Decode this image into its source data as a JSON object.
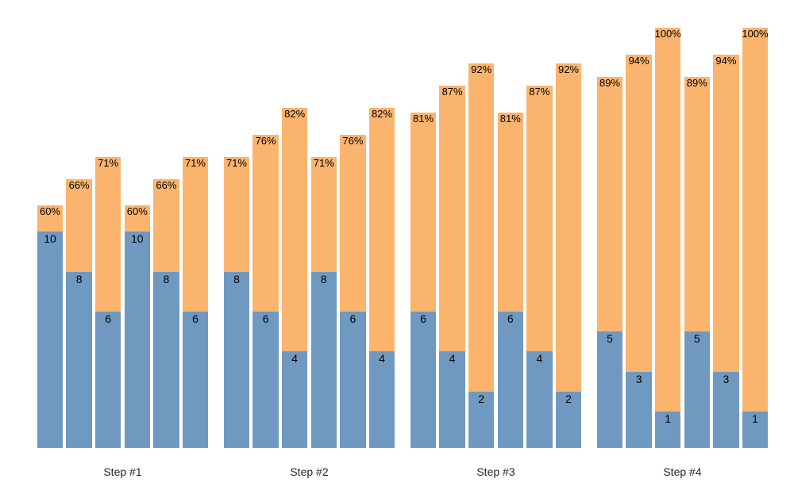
{
  "chart_data": {
    "type": "bar",
    "subtype": "stacked_columns_percent_over_count",
    "title": "",
    "xlabel": "",
    "ylabel": "",
    "grid": false,
    "axes_visible": false,
    "legend_position": "none",
    "background_color": "#ffffff",
    "colors": {
      "bottom_segment_blue": "#7099C1",
      "top_segment_orange": "#FAB46E",
      "bar_label_text": "#000000",
      "group_label_text": "#262626"
    },
    "groups": [
      {
        "label": "Step #1",
        "bars": [
          {
            "percent": 60,
            "percent_label": "60%",
            "count": 10,
            "count_label": "10"
          },
          {
            "percent": 66,
            "percent_label": "66%",
            "count": 8,
            "count_label": "8"
          },
          {
            "percent": 71,
            "percent_label": "71%",
            "count": 6,
            "count_label": "6"
          },
          {
            "percent": 60,
            "percent_label": "60%",
            "count": 10,
            "count_label": "10"
          },
          {
            "percent": 66,
            "percent_label": "66%",
            "count": 8,
            "count_label": "8"
          },
          {
            "percent": 71,
            "percent_label": "71%",
            "count": 6,
            "count_label": "6"
          }
        ]
      },
      {
        "label": "Step #2",
        "bars": [
          {
            "percent": 71,
            "percent_label": "71%",
            "count": 8,
            "count_label": "8"
          },
          {
            "percent": 76,
            "percent_label": "76%",
            "count": 6,
            "count_label": "6"
          },
          {
            "percent": 82,
            "percent_label": "82%",
            "count": 4,
            "count_label": "4"
          },
          {
            "percent": 71,
            "percent_label": "71%",
            "count": 8,
            "count_label": "8"
          },
          {
            "percent": 76,
            "percent_label": "76%",
            "count": 6,
            "count_label": "6"
          },
          {
            "percent": 82,
            "percent_label": "82%",
            "count": 4,
            "count_label": "4"
          }
        ]
      },
      {
        "label": "Step #3",
        "bars": [
          {
            "percent": 81,
            "percent_label": "81%",
            "count": 6,
            "count_label": "6"
          },
          {
            "percent": 87,
            "percent_label": "87%",
            "count": 4,
            "count_label": "4"
          },
          {
            "percent": 92,
            "percent_label": "92%",
            "count": 2,
            "count_label": "2"
          },
          {
            "percent": 81,
            "percent_label": "81%",
            "count": 6,
            "count_label": "6"
          },
          {
            "percent": 87,
            "percent_label": "87%",
            "count": 4,
            "count_label": "4"
          },
          {
            "percent": 92,
            "percent_label": "92%",
            "count": 2,
            "count_label": "2"
          }
        ]
      },
      {
        "label": "Step #4",
        "bars": [
          {
            "percent": 89,
            "percent_label": "89%",
            "count": 5,
            "count_label": "5"
          },
          {
            "percent": 94,
            "percent_label": "94%",
            "count": 3,
            "count_label": "3"
          },
          {
            "percent": 100,
            "percent_label": "100%",
            "count": 1,
            "count_label": "1"
          },
          {
            "percent": 89,
            "percent_label": "89%",
            "count": 5,
            "count_label": "5"
          },
          {
            "percent": 94,
            "percent_label": "94%",
            "count": 3,
            "count_label": "3"
          },
          {
            "percent": 100,
            "percent_label": "100%",
            "count": 1,
            "count_label": "1"
          }
        ]
      }
    ]
  }
}
